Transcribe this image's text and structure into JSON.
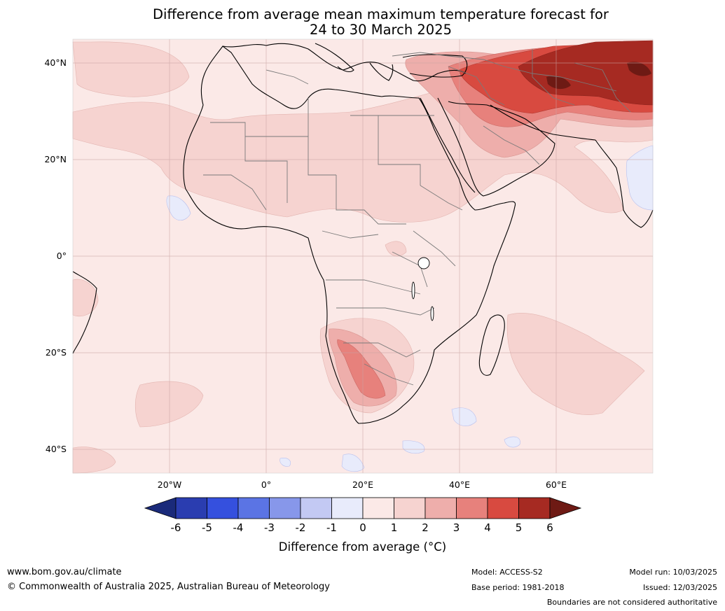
{
  "title_line1": "Difference from average mean maximum temperature forecast for",
  "title_line2": "24 to 30 March 2025",
  "lat_labels": [
    "40°N",
    "20°N",
    "0°",
    "20°S",
    "40°S"
  ],
  "lon_labels": [
    "20°W",
    "0°",
    "20°E",
    "40°E",
    "60°E"
  ],
  "colorbar": {
    "ticks": [
      "-6",
      "-5",
      "-4",
      "-3",
      "-2",
      "-1",
      "0",
      "1",
      "2",
      "3",
      "4",
      "5",
      "6"
    ],
    "label": "Difference from average (°C)",
    "colors": [
      "#1a2a7a",
      "#2a3db0",
      "#3550de",
      "#5b74e4",
      "#8797ea",
      "#c3c9f3",
      "#e8ebfb",
      "#fbe9e7",
      "#f6d3d0",
      "#eeaeab",
      "#e7817c",
      "#d84a40",
      "#a62a22",
      "#6e1a14"
    ]
  },
  "footer": {
    "url": "www.bom.gov.au/climate",
    "copyright": "© Commonwealth of Australia 2025, Australian Bureau of Meteorology",
    "model": "Model: ACCESS-S2",
    "base_period": "Base period: 1981-2018",
    "model_run": "Model run: 10/03/2025",
    "issued": "Issued: 12/03/2025",
    "note": "Boundaries are not considered authoritative"
  }
}
